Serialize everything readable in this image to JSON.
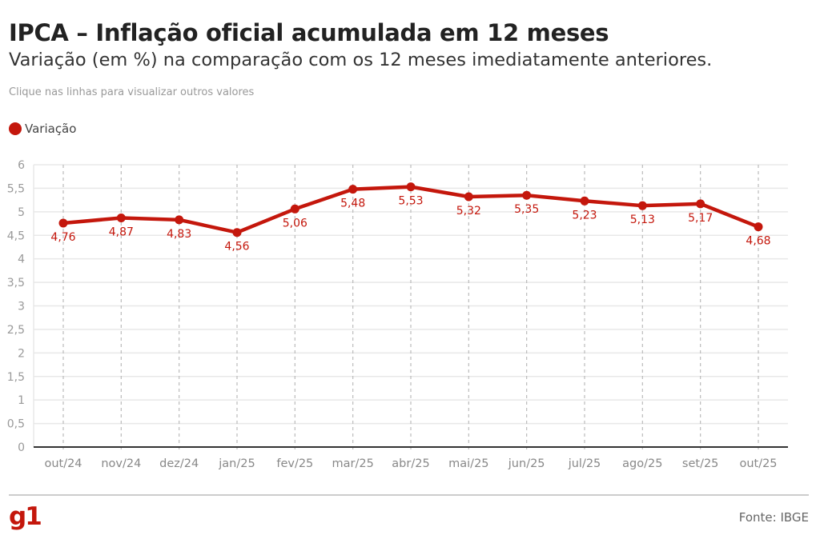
{
  "header": {
    "title": "IPCA – Inflação oficial acumulada em 12 meses",
    "subtitle": "Variação (em %) na comparação com os 12 meses imediatamente anteriores.",
    "hint": "Clique nas linhas para visualizar outros valores"
  },
  "legend": {
    "label": "Variação",
    "color": "#c4170c"
  },
  "chart_data": {
    "type": "line",
    "categories": [
      "out/24",
      "nov/24",
      "dez/24",
      "jan/25",
      "fev/25",
      "mar/25",
      "abr/25",
      "mai/25",
      "jun/25",
      "jul/25",
      "ago/25",
      "set/25",
      "out/25"
    ],
    "series": [
      {
        "name": "Variação",
        "values": [
          4.76,
          4.87,
          4.83,
          4.56,
          5.06,
          5.48,
          5.53,
          5.32,
          5.35,
          5.23,
          5.13,
          5.17,
          4.68
        ],
        "labels": [
          "4,76",
          "4,87",
          "4,83",
          "4,56",
          "5,06",
          "5,48",
          "5,53",
          "5,32",
          "5,35",
          "5,23",
          "5,13",
          "5,17",
          "4,68"
        ],
        "color": "#c4170c"
      }
    ],
    "ylim": [
      0,
      6
    ],
    "yticks": [
      0,
      0.5,
      1,
      1.5,
      2,
      2.5,
      3,
      3.5,
      4,
      4.5,
      5,
      5.5,
      6
    ],
    "ytick_labels": [
      "0",
      "0,5",
      "1",
      "1,5",
      "2",
      "2,5",
      "3",
      "3,5",
      "4",
      "4,5",
      "5",
      "5,5",
      "6"
    ],
    "grid": true
  },
  "footer": {
    "logo": "g1",
    "source": "Fonte: IBGE"
  }
}
